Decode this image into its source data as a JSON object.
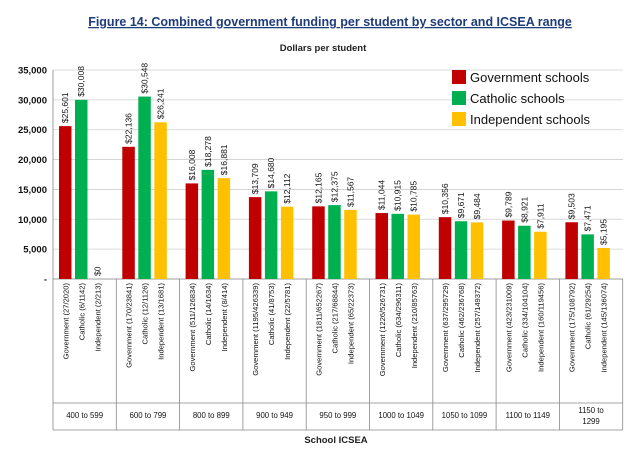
{
  "chart_data": {
    "type": "bar",
    "title": "Figure 14: Combined government funding per student by sector and ICSEA range",
    "ylabel": "Dollars per student",
    "xlabel": "School ICSEA",
    "ylim": [
      0,
      35000
    ],
    "yticks": [
      "-",
      "5,000",
      "10,000",
      "15,000",
      "20,000",
      "25,000",
      "30,000",
      "35,000"
    ],
    "ytick_values": [
      0,
      5000,
      10000,
      15000,
      20000,
      25000,
      30000,
      35000
    ],
    "grid": true,
    "legend_position": "top-right",
    "series": [
      {
        "name": "Government schools",
        "color": "#c00000"
      },
      {
        "name": "Catholic schools",
        "color": "#00b050"
      },
      {
        "name": "Independent   schools",
        "color": "#ffc000"
      }
    ],
    "groups": [
      {
        "label": "400 to 599",
        "bars": [
          {
            "category": "Government (27/2020)",
            "value": 25601,
            "label": "$25,601"
          },
          {
            "category": "Catholic (6/1142)",
            "value": 30008,
            "label": "$30,008"
          },
          {
            "category": "Independent (2/213)",
            "value": 0,
            "label": "$0"
          }
        ]
      },
      {
        "label": "600 to 799",
        "bars": [
          {
            "category": "Government (170/23841)",
            "value": 22136,
            "label": "$22,136"
          },
          {
            "category": "Catholic (12/1126)",
            "value": 30548,
            "label": "$30,548"
          },
          {
            "category": "Independent (13/1681)",
            "value": 26241,
            "label": "$26,241"
          }
        ]
      },
      {
        "label": "800 to 899",
        "bars": [
          {
            "category": "Government (511/126834)",
            "value": 16008,
            "label": "$16,008"
          },
          {
            "category": "Catholic (14/1634)",
            "value": 18278,
            "label": "$18,278"
          },
          {
            "category": "Independent (8/414)",
            "value": 16881,
            "label": "$16,881"
          }
        ]
      },
      {
        "label": "900 to 949",
        "bars": [
          {
            "category": "Government (1195/426339)",
            "value": 13709,
            "label": "$13,709"
          },
          {
            "category": "Catholic (41/8753)",
            "value": 14680,
            "label": "$14,680"
          },
          {
            "category": "Independent (22/5781)",
            "value": 12112,
            "label": "$12,112"
          }
        ]
      },
      {
        "label": "950 to 999",
        "bars": [
          {
            "category": "Government (1811/652267)",
            "value": 12165,
            "label": "$12,165"
          },
          {
            "category": "Catholic (217/68844)",
            "value": 12375,
            "label": "$12,375"
          },
          {
            "category": "Independent (65/22373)",
            "value": 11567,
            "label": "$11,567"
          }
        ]
      },
      {
        "label": "1000 to 1049",
        "bars": [
          {
            "category": "Government (1226/526731)",
            "value": 11044,
            "label": "$11,044"
          },
          {
            "category": "Catholic (634/296311)",
            "value": 10915,
            "label": "$10,915"
          },
          {
            "category": "Independent (210/85763)",
            "value": 10785,
            "label": "$10,785"
          }
        ]
      },
      {
        "label": "1050 to 1099",
        "bars": [
          {
            "category": "Government (637/295729)",
            "value": 10356,
            "label": "$10,356"
          },
          {
            "category": "Catholic (462/236768)",
            "value": 9671,
            "label": "$9,671"
          },
          {
            "category": "Independent (257/149372)",
            "value": 9484,
            "label": "$9,484"
          }
        ]
      },
      {
        "label": "1100 to 1149",
        "bars": [
          {
            "category": "Government (423/231009)",
            "value": 9789,
            "label": "$9,789"
          },
          {
            "category": "Catholic (334/104104)",
            "value": 8921,
            "label": "$8,921"
          },
          {
            "category": "Independent (160/119456)",
            "value": 7911,
            "label": "$7,911"
          }
        ]
      },
      {
        "label": "1150 to 1299",
        "bars": [
          {
            "category": "Government (175/108792)",
            "value": 9503,
            "label": "$9,503"
          },
          {
            "category": "Catholic (61/29254)",
            "value": 7471,
            "label": "$7,471"
          },
          {
            "category": "Independent (145/136074)",
            "value": 5195,
            "label": "$5,195"
          }
        ]
      }
    ]
  }
}
